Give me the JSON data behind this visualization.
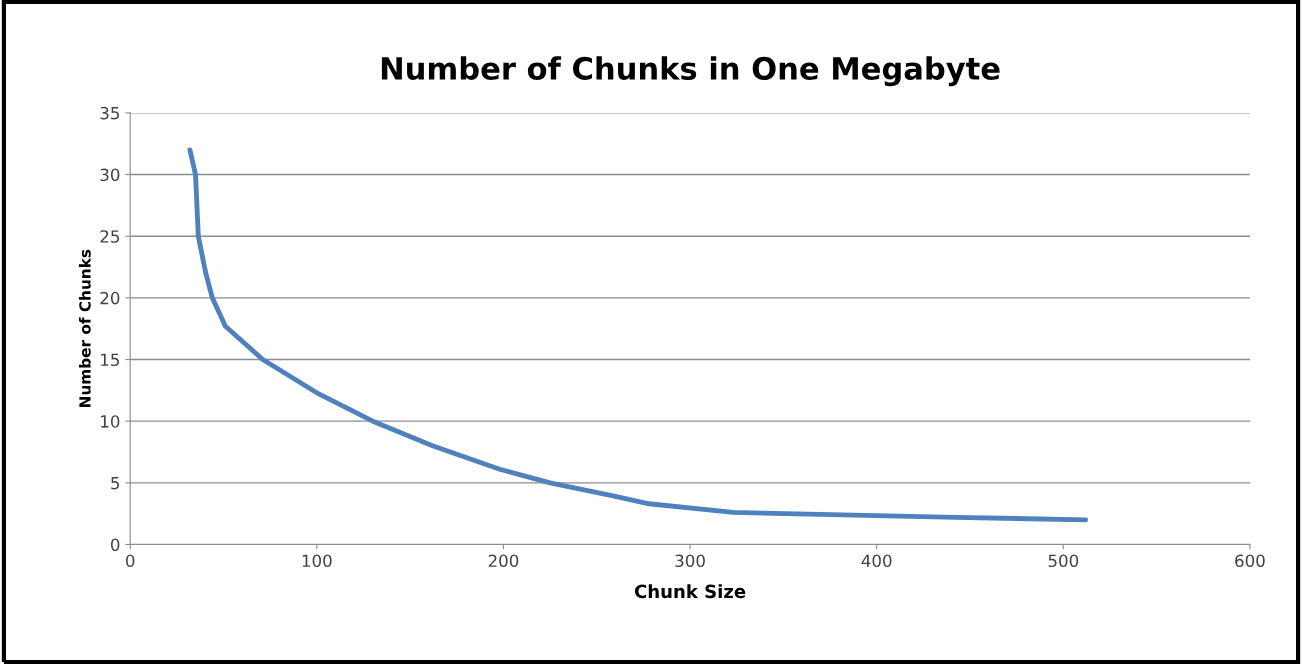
{
  "chart_data": {
    "type": "line",
    "title": "Number of Chunks in One Megabyte",
    "xlabel": "Chunk Size",
    "ylabel": "Number of Chunks",
    "x": [
      32,
      35,
      36.5,
      40.5,
      44,
      51,
      71,
      100,
      130,
      162,
      198,
      225,
      260,
      278,
      323,
      382,
      442,
      512
    ],
    "series": [
      {
        "color": "#4f81bd",
        "values": [
          32,
          30,
          25,
          22,
          20,
          17.7,
          15,
          12.3,
          10,
          8,
          6.1,
          5,
          3.9,
          3.3,
          2.6,
          2.4,
          2.2,
          2
        ]
      }
    ],
    "xlim": [
      0,
      600
    ],
    "xticks": [
      0,
      100,
      200,
      300,
      400,
      500,
      600
    ],
    "ylim": [
      0,
      35
    ],
    "yticks": [
      0,
      5,
      10,
      15,
      20,
      25,
      30,
      35
    ],
    "grid": "y",
    "legend": false,
    "marker": "none",
    "line_style": "solid"
  }
}
